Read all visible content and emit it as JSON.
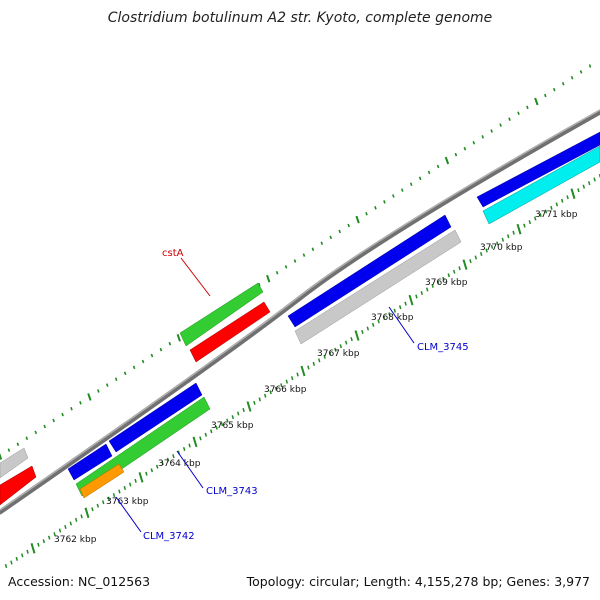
{
  "title": "Clostridium botulinum A2 str. Kyoto, complete genome",
  "footer": {
    "accession": "Accession: NC_012563",
    "summary": "Topology: circular; Length: 4,155,278 bp; Genes: 3,977"
  },
  "colors": {
    "backbone": "#808080",
    "tick": "#228B22",
    "blue_gene": "#0000ee",
    "green_gene": "#33cc33",
    "red_gene": "#ff0000",
    "gray_gene": "#c8c8c8",
    "cyan_gene": "#00eeee",
    "orange_gene": "#ff9900",
    "label_blue": "#0000cc",
    "label_red": "#cc0000"
  },
  "ticks": [
    {
      "label": "3762 kbp"
    },
    {
      "label": "3763 kbp"
    },
    {
      "label": "3764 kbp"
    },
    {
      "label": "3765 kbp"
    },
    {
      "label": "3766 kbp"
    },
    {
      "label": "3767 kbp"
    },
    {
      "label": "3768 kbp"
    },
    {
      "label": "3769 kbp"
    },
    {
      "label": "3770 kbp"
    },
    {
      "label": "3771 kbp"
    }
  ],
  "gene_labels": [
    {
      "name": "cstA",
      "color": "red"
    },
    {
      "name": "CLM_3745",
      "color": "blue"
    },
    {
      "name": "CLM_3743",
      "color": "blue"
    },
    {
      "name": "CLM_3742",
      "color": "blue"
    }
  ]
}
